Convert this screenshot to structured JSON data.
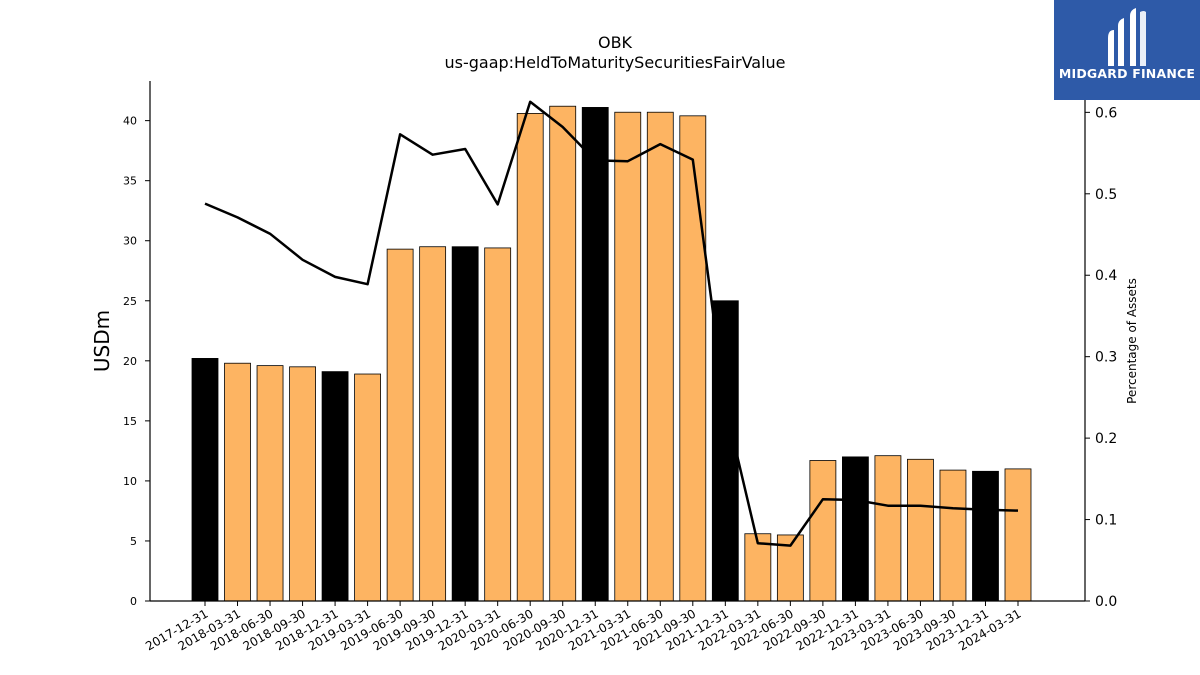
{
  "chart_data": {
    "type": "bar",
    "title": "OBK",
    "subtitle": "us-gaap:HeldToMaturitySecuritiesFairValue",
    "ylabel": "USDm",
    "y2label": "Percentage of Assets",
    "ylim": [
      0,
      43.3
    ],
    "y2lim": [
      0,
      0.6385
    ],
    "yticks": [
      0,
      5,
      10,
      15,
      20,
      25,
      30,
      35,
      40
    ],
    "y2ticks": [
      "0.0",
      "0.1",
      "0.2",
      "0.3",
      "0.4",
      "0.5",
      "0.6"
    ],
    "categories": [
      "2017-12-31",
      "2018-03-31",
      "2018-06-30",
      "2018-09-30",
      "2018-12-31",
      "2019-03-31",
      "2019-06-30",
      "2019-09-30",
      "2019-12-31",
      "2020-03-31",
      "2020-06-30",
      "2020-09-30",
      "2020-12-31",
      "2021-03-31",
      "2021-06-30",
      "2021-09-30",
      "2021-12-31",
      "2022-03-31",
      "2022-06-30",
      "2022-09-30",
      "2022-12-31",
      "2023-03-31",
      "2023-06-30",
      "2023-09-30",
      "2023-12-31",
      "2024-03-31"
    ],
    "series": [
      {
        "type": "bar",
        "values": [
          20.2,
          19.8,
          19.6,
          19.5,
          19.1,
          18.9,
          29.3,
          29.5,
          29.5,
          29.4,
          40.6,
          41.2,
          41.1,
          40.7,
          40.7,
          40.4,
          25.0,
          5.6,
          5.5,
          11.7,
          12.0,
          12.1,
          11.8,
          10.9,
          10.8,
          11.0
        ],
        "colors": [
          "#000000",
          "#fdb462",
          "#fdb462",
          "#fdb462",
          "#000000",
          "#fdb462",
          "#fdb462",
          "#fdb462",
          "#000000",
          "#fdb462",
          "#fdb462",
          "#fdb462",
          "#000000",
          "#fdb462",
          "#fdb462",
          "#fdb462",
          "#000000",
          "#fdb462",
          "#fdb462",
          "#fdb462",
          "#000000",
          "#fdb462",
          "#fdb462",
          "#fdb462",
          "#000000",
          "#fdb462"
        ]
      },
      {
        "type": "line",
        "axis": "right",
        "color": "#000000",
        "values": [
          0.488,
          0.471,
          0.451,
          0.419,
          0.398,
          0.389,
          0.573,
          0.548,
          0.555,
          0.487,
          0.613,
          0.582,
          0.541,
          0.54,
          0.561,
          0.542,
          0.24,
          0.071,
          0.068,
          0.125,
          0.124,
          0.117,
          0.117,
          0.114,
          0.112,
          0.111
        ]
      }
    ],
    "grid": false
  },
  "logo": {
    "text": "MIDGARD FINANCE",
    "background": "#2e5aa8"
  }
}
